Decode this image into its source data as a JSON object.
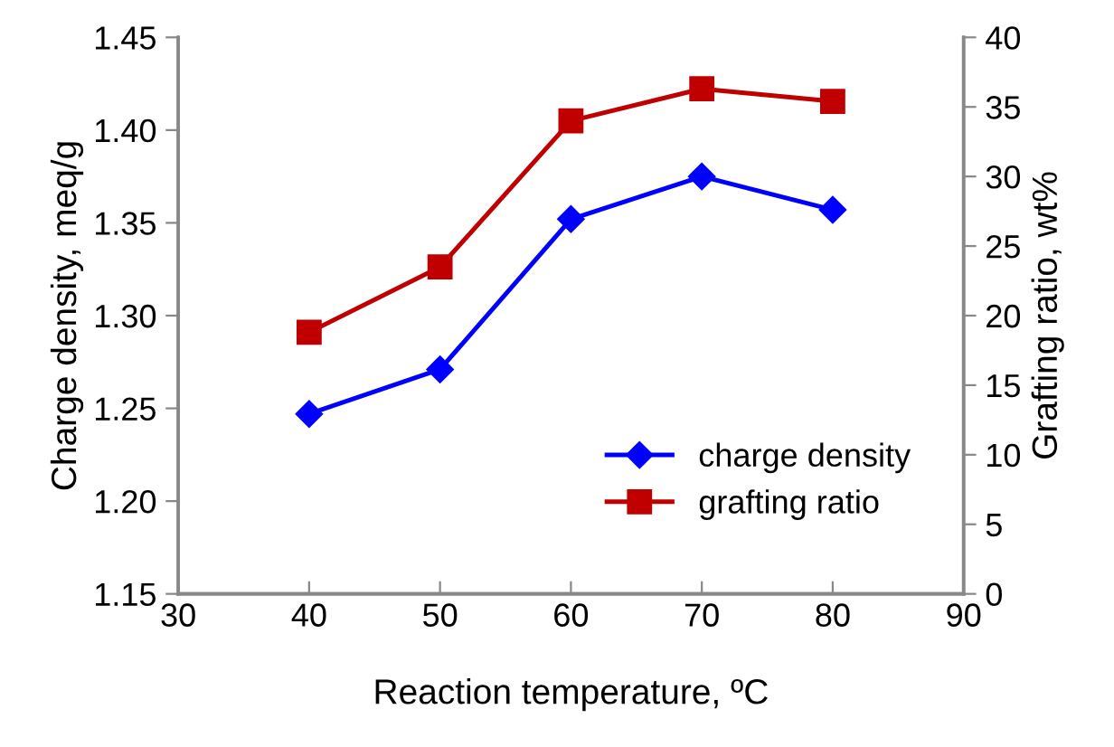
{
  "chart_data": {
    "type": "line",
    "xlabel": "Reaction temperature, ºC",
    "ylabel": "Charge density, meq/g",
    "y2label": "Grafting ratio, wt%",
    "x": [
      40,
      50,
      60,
      70,
      80
    ],
    "series": [
      {
        "name": "charge density",
        "color": "#0000ff",
        "values": [
          1.247,
          1.271,
          1.352,
          1.375,
          1.357
        ],
        "marker": "diamond"
      },
      {
        "name": "grafting ratio",
        "color": "#c00000",
        "values": [
          18.8,
          23.5,
          34.0,
          36.3,
          35.4
        ],
        "marker": "square",
        "axis": "y2"
      }
    ],
    "xlim": [
      30,
      90
    ],
    "xticks": [
      30,
      40,
      50,
      60,
      70,
      80,
      90
    ],
    "ylim": [
      1.15,
      1.45
    ],
    "yticks": [
      {
        "value": 1.15,
        "label": "1.15"
      },
      {
        "value": 1.2,
        "label": "1.20"
      },
      {
        "value": 1.25,
        "label": "1.25"
      },
      {
        "value": 1.3,
        "label": "1.30"
      },
      {
        "value": 1.35,
        "label": "1.35"
      },
      {
        "value": 1.4,
        "label": "1.40"
      },
      {
        "value": 1.45,
        "label": "1.45"
      }
    ],
    "y2lim": [
      0,
      40
    ],
    "y2ticks": [
      0,
      5,
      10,
      15,
      20,
      25,
      30,
      35,
      40
    ],
    "grid": false,
    "legend": "bottom right",
    "line_style": "solid"
  }
}
